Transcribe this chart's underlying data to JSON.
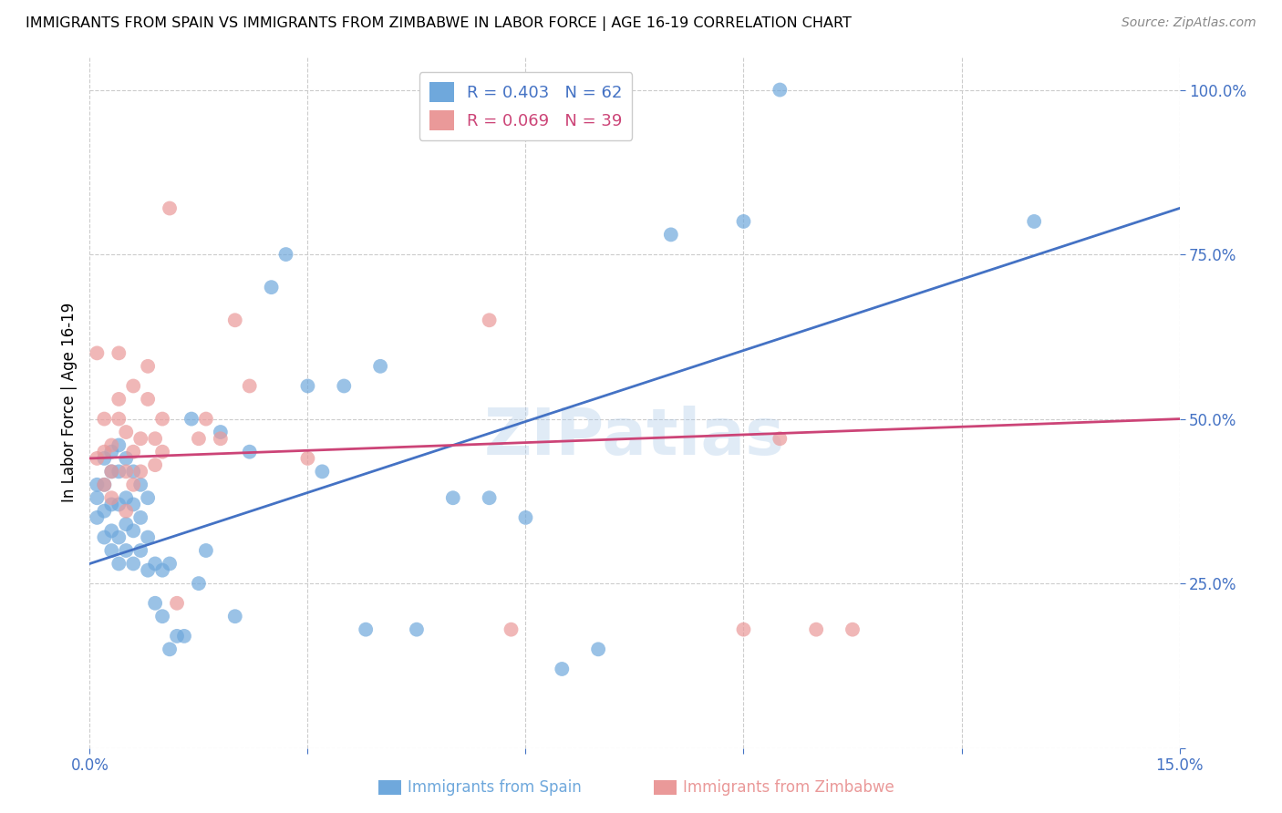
{
  "title": "IMMIGRANTS FROM SPAIN VS IMMIGRANTS FROM ZIMBABWE IN LABOR FORCE | AGE 16-19 CORRELATION CHART",
  "source": "Source: ZipAtlas.com",
  "ylabel_label": "In Labor Force | Age 16-19",
  "xlim": [
    0.0,
    0.15
  ],
  "ylim": [
    0.0,
    1.05
  ],
  "yticks": [
    0.0,
    0.25,
    0.5,
    0.75,
    1.0
  ],
  "yticklabels": [
    "",
    "25.0%",
    "50.0%",
    "75.0%",
    "100.0%"
  ],
  "spain_color": "#6fa8dc",
  "zimbabwe_color": "#ea9999",
  "spain_line_color": "#4472c4",
  "zimbabwe_line_color": "#cc4477",
  "legend_R_spain": "R = 0.403",
  "legend_N_spain": "N = 62",
  "legend_R_zimbabwe": "R = 0.069",
  "legend_N_zimbabwe": "N = 39",
  "watermark": "ZIPatlas",
  "background_color": "#ffffff",
  "grid_color": "#cccccc",
  "tick_label_color": "#4472c4",
  "spain_x": [
    0.001,
    0.001,
    0.001,
    0.002,
    0.002,
    0.002,
    0.002,
    0.003,
    0.003,
    0.003,
    0.003,
    0.003,
    0.004,
    0.004,
    0.004,
    0.004,
    0.004,
    0.005,
    0.005,
    0.005,
    0.005,
    0.006,
    0.006,
    0.006,
    0.006,
    0.007,
    0.007,
    0.007,
    0.008,
    0.008,
    0.008,
    0.009,
    0.009,
    0.01,
    0.01,
    0.011,
    0.011,
    0.012,
    0.013,
    0.014,
    0.015,
    0.016,
    0.018,
    0.02,
    0.022,
    0.025,
    0.027,
    0.03,
    0.032,
    0.035,
    0.038,
    0.04,
    0.045,
    0.05,
    0.055,
    0.06,
    0.065,
    0.07,
    0.08,
    0.09,
    0.095,
    0.13
  ],
  "spain_y": [
    0.35,
    0.38,
    0.4,
    0.32,
    0.36,
    0.4,
    0.44,
    0.3,
    0.33,
    0.37,
    0.42,
    0.45,
    0.28,
    0.32,
    0.37,
    0.42,
    0.46,
    0.3,
    0.34,
    0.38,
    0.44,
    0.28,
    0.33,
    0.37,
    0.42,
    0.3,
    0.35,
    0.4,
    0.27,
    0.32,
    0.38,
    0.22,
    0.28,
    0.2,
    0.27,
    0.15,
    0.28,
    0.17,
    0.17,
    0.5,
    0.25,
    0.3,
    0.48,
    0.2,
    0.45,
    0.7,
    0.75,
    0.55,
    0.42,
    0.55,
    0.18,
    0.58,
    0.18,
    0.38,
    0.38,
    0.35,
    0.12,
    0.15,
    0.78,
    0.8,
    1.0,
    0.8
  ],
  "zimbabwe_x": [
    0.001,
    0.001,
    0.002,
    0.002,
    0.002,
    0.003,
    0.003,
    0.003,
    0.004,
    0.004,
    0.004,
    0.005,
    0.005,
    0.005,
    0.006,
    0.006,
    0.006,
    0.007,
    0.007,
    0.008,
    0.008,
    0.009,
    0.009,
    0.01,
    0.01,
    0.011,
    0.012,
    0.015,
    0.016,
    0.018,
    0.02,
    0.022,
    0.03,
    0.055,
    0.058,
    0.09,
    0.095,
    0.1,
    0.105
  ],
  "zimbabwe_y": [
    0.44,
    0.6,
    0.4,
    0.45,
    0.5,
    0.38,
    0.42,
    0.46,
    0.5,
    0.53,
    0.6,
    0.36,
    0.42,
    0.48,
    0.4,
    0.45,
    0.55,
    0.42,
    0.47,
    0.53,
    0.58,
    0.43,
    0.47,
    0.45,
    0.5,
    0.82,
    0.22,
    0.47,
    0.5,
    0.47,
    0.65,
    0.55,
    0.44,
    0.65,
    0.18,
    0.18,
    0.47,
    0.18,
    0.18
  ],
  "spain_line_x0": 0.0,
  "spain_line_y0": 0.28,
  "spain_line_x1": 0.15,
  "spain_line_y1": 0.82,
  "zim_line_x0": 0.0,
  "zim_line_y0": 0.44,
  "zim_line_x1": 0.15,
  "zim_line_y1": 0.5
}
